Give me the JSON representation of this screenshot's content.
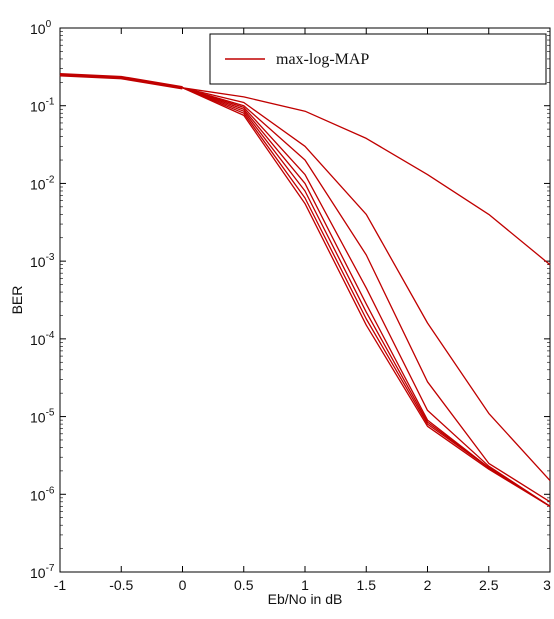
{
  "chart_data": {
    "type": "line",
    "xlabel": "Eb/No in dB",
    "ylabel": "BER",
    "y_scale": "log",
    "xlim": [
      -1,
      3
    ],
    "ylim": [
      1e-07,
      1
    ],
    "x_ticks": [
      "-1",
      "-0.5",
      "0",
      "0.5",
      "1",
      "1.5",
      "2",
      "2.5",
      "3"
    ],
    "y_ticks": [
      {
        "base": "10",
        "exp": "0"
      },
      {
        "base": "10",
        "exp": "-1"
      },
      {
        "base": "10",
        "exp": "-2"
      },
      {
        "base": "10",
        "exp": "-3"
      },
      {
        "base": "10",
        "exp": "-4"
      },
      {
        "base": "10",
        "exp": "-5"
      },
      {
        "base": "10",
        "exp": "-6"
      },
      {
        "base": "10",
        "exp": "-7"
      }
    ],
    "grid": false,
    "legend": {
      "placement": "top-right",
      "entries": [
        "max-log-MAP"
      ]
    },
    "series_color": "#c00000",
    "series": [
      {
        "x": [
          -1,
          -0.5,
          0,
          0.5,
          1,
          1.5,
          2,
          2.5,
          3
        ],
        "y": [
          0.25,
          0.23,
          0.17,
          0.13,
          0.085,
          0.038,
          0.013,
          0.004,
          0.0009
        ]
      },
      {
        "x": [
          -1,
          -0.5,
          0,
          0.5,
          1,
          1.5,
          2,
          2.5,
          3
        ],
        "y": [
          0.25,
          0.23,
          0.17,
          0.11,
          0.03,
          0.004,
          0.00016,
          1.1e-05,
          1.5e-06
        ]
      },
      {
        "x": [
          -1,
          -0.5,
          0,
          0.5,
          1,
          1.5,
          2,
          2.5,
          3
        ],
        "y": [
          0.25,
          0.23,
          0.17,
          0.1,
          0.02,
          0.0012,
          2.8e-05,
          2.5e-06,
          8e-07
        ]
      },
      {
        "x": [
          -1,
          -0.5,
          0,
          0.5,
          1,
          1.5,
          2,
          2.5,
          3
        ],
        "y": [
          0.25,
          0.23,
          0.17,
          0.095,
          0.013,
          0.00045,
          1.2e-05,
          2.3e-06,
          7e-07
        ]
      },
      {
        "x": [
          -1,
          -0.5,
          0,
          0.5,
          1,
          1.5,
          2,
          2.5,
          3
        ],
        "y": [
          0.25,
          0.23,
          0.17,
          0.09,
          0.01,
          0.00028,
          9e-06,
          2.2e-06,
          7e-07
        ]
      },
      {
        "x": [
          -1,
          -0.5,
          0,
          0.5,
          1,
          1.5,
          2,
          2.5,
          3
        ],
        "y": [
          0.25,
          0.23,
          0.17,
          0.085,
          0.008,
          0.00022,
          8.5e-06,
          2.2e-06,
          7e-07
        ]
      },
      {
        "x": [
          -1,
          -0.5,
          0,
          0.5,
          1,
          1.5,
          2,
          2.5,
          3
        ],
        "y": [
          0.25,
          0.23,
          0.17,
          0.08,
          0.0065,
          0.00018,
          8e-06,
          2.2e-06,
          7e-07
        ]
      },
      {
        "x": [
          -1,
          -0.5,
          0,
          0.5,
          1,
          1.5,
          2,
          2.5,
          3
        ],
        "y": [
          0.25,
          0.23,
          0.17,
          0.075,
          0.0055,
          0.00015,
          7.5e-06,
          2.1e-06,
          7e-07
        ]
      }
    ]
  }
}
